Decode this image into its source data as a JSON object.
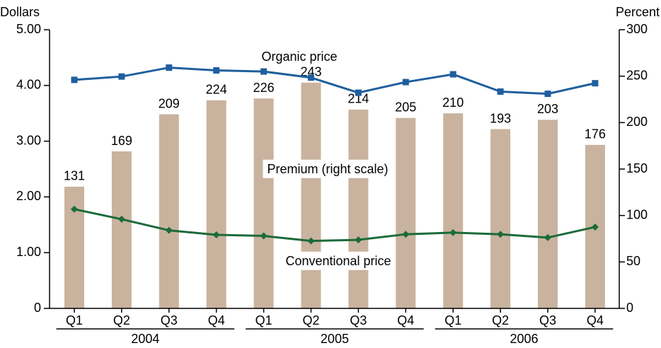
{
  "chart_data": {
    "type": "bar_line",
    "y_axis_label": "Dollars",
    "y2_axis_label": "Percent",
    "categories": [
      "Q1",
      "Q2",
      "Q3",
      "Q4",
      "Q1",
      "Q2",
      "Q3",
      "Q4",
      "Q1",
      "Q2",
      "Q3",
      "Q4"
    ],
    "x_groups": [
      {
        "label": "2004",
        "count": 4
      },
      {
        "label": "2005",
        "count": 4
      },
      {
        "label": "2006",
        "count": 4
      }
    ],
    "series": [
      {
        "name": "Premium (right scale)",
        "type": "bar",
        "axis": "y2",
        "color": "#c9b39e",
        "values": [
          131,
          169,
          209,
          224,
          226,
          243,
          214,
          205,
          210,
          193,
          203,
          176
        ]
      },
      {
        "name": "Organic price",
        "type": "line",
        "axis": "y",
        "color": "#1f5f9e",
        "values": [
          4.1,
          4.16,
          4.32,
          4.27,
          4.25,
          4.14,
          3.87,
          4.06,
          4.2,
          3.89,
          3.85,
          4.04
        ]
      },
      {
        "name": "Conventional price",
        "type": "line",
        "axis": "y",
        "color": "#1b6b3a",
        "values": [
          1.78,
          1.6,
          1.4,
          1.32,
          1.3,
          1.21,
          1.23,
          1.33,
          1.36,
          1.33,
          1.27,
          1.46
        ]
      }
    ],
    "ylim": [
      0,
      5
    ],
    "yticks": [
      0,
      {
        "value": 1,
        "label": "1.00"
      },
      {
        "value": 2,
        "label": "2.00"
      },
      {
        "value": 3,
        "label": "3.00"
      },
      {
        "value": 4,
        "label": "4.00"
      },
      {
        "value": 5,
        "label": "5.00"
      }
    ],
    "y2lim": [
      0,
      300
    ],
    "y2ticks": [
      0,
      50,
      100,
      150,
      200,
      250,
      300
    ]
  }
}
